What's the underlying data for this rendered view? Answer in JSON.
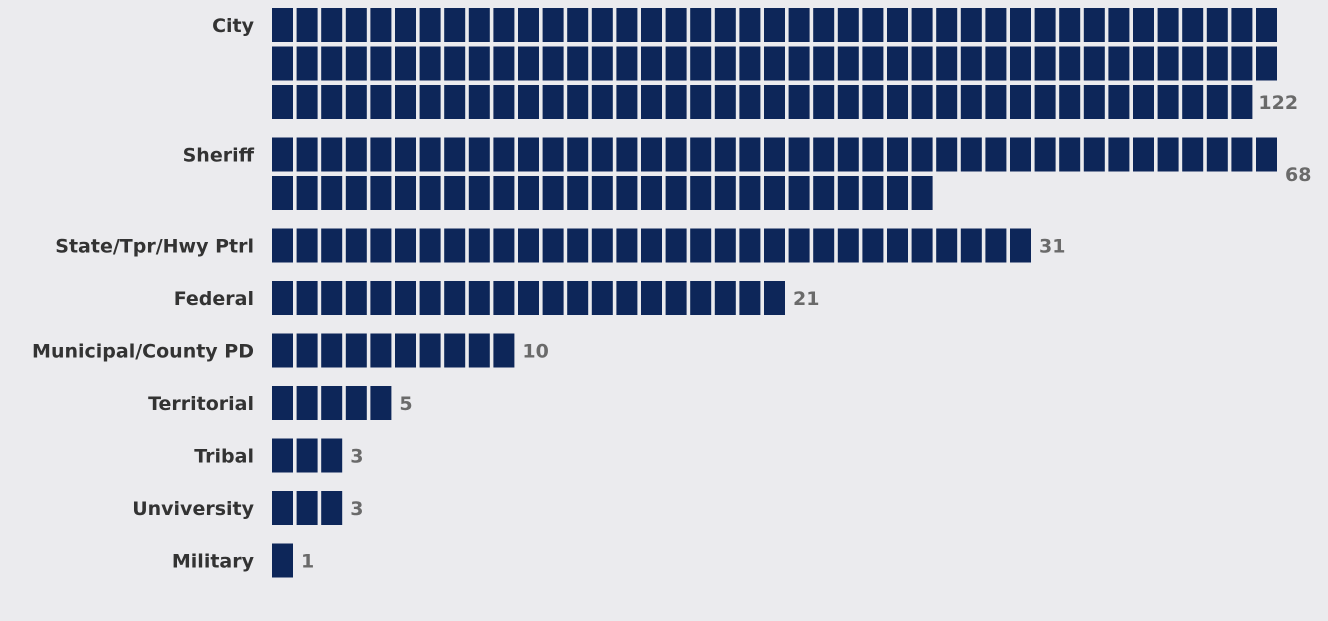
{
  "chart_data": {
    "type": "bar",
    "subtype": "waffle-horizontal",
    "units_per_row": 41,
    "categories": [
      "City",
      "Sheriff",
      "State/Tpr/Hwy Ptrl",
      "Federal",
      "Municipal/County PD",
      "Territorial",
      "Tribal",
      "Unviversity",
      "Military"
    ],
    "values": [
      122,
      68,
      31,
      21,
      10,
      5,
      3,
      3,
      1
    ],
    "title": "",
    "xlabel": "",
    "ylabel": "",
    "grid": false,
    "legend": "none",
    "colors": {
      "bar": "#0d2659",
      "value_text": "#6a6a6a",
      "label_text": "#333333",
      "background": "#ebebee"
    }
  }
}
